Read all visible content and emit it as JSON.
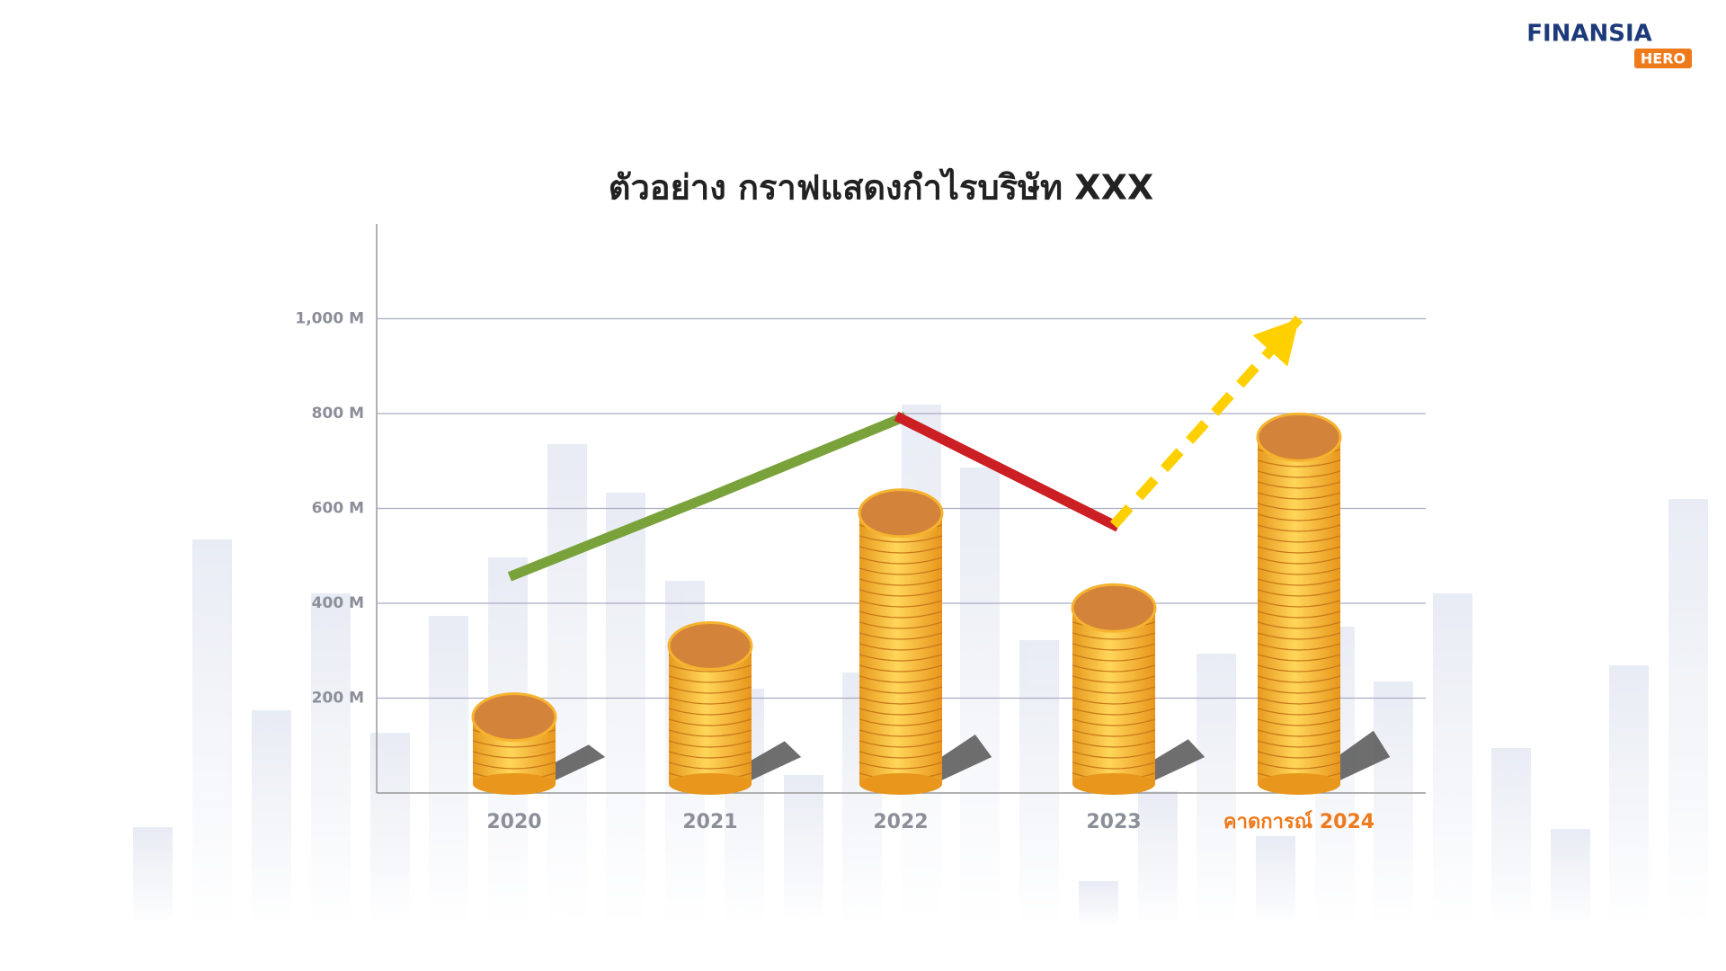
{
  "brand": {
    "name": "FINANSIA",
    "tag": "HERO"
  },
  "chart_data": {
    "type": "bar",
    "title": "ตัวอย่าง กราฟแสดงกำไรบริษัท XXX",
    "categories": [
      "2020",
      "2021",
      "2022",
      "2023",
      "คาดการณ์ 2024"
    ],
    "ylim": [
      0,
      1200
    ],
    "yticks": [
      {
        "value": 200,
        "label": "200 M"
      },
      {
        "value": 400,
        "label": "400 M"
      },
      {
        "value": 600,
        "label": "600 M"
      },
      {
        "value": 800,
        "label": "800 M"
      },
      {
        "value": 1000,
        "label": "1,000 M"
      }
    ],
    "grid": true,
    "color": "#f5b32f",
    "values": [
      160,
      310,
      590,
      390,
      750
    ],
    "series": [
      {
        "type": "line",
        "color": "#7aa23a",
        "values": [
          460,
          625,
          790,
          null,
          null
        ]
      },
      {
        "type": "line",
        "color": "#cc1f24",
        "values": [
          null,
          null,
          790,
          565,
          null
        ]
      },
      {
        "type": "line",
        "color": "#ffd000",
        "dashed": true,
        "arrow": true,
        "values": [
          null,
          null,
          null,
          565,
          1000
        ]
      }
    ],
    "highlight_color": "#ee7a1c",
    "highlight_category": 4
  }
}
